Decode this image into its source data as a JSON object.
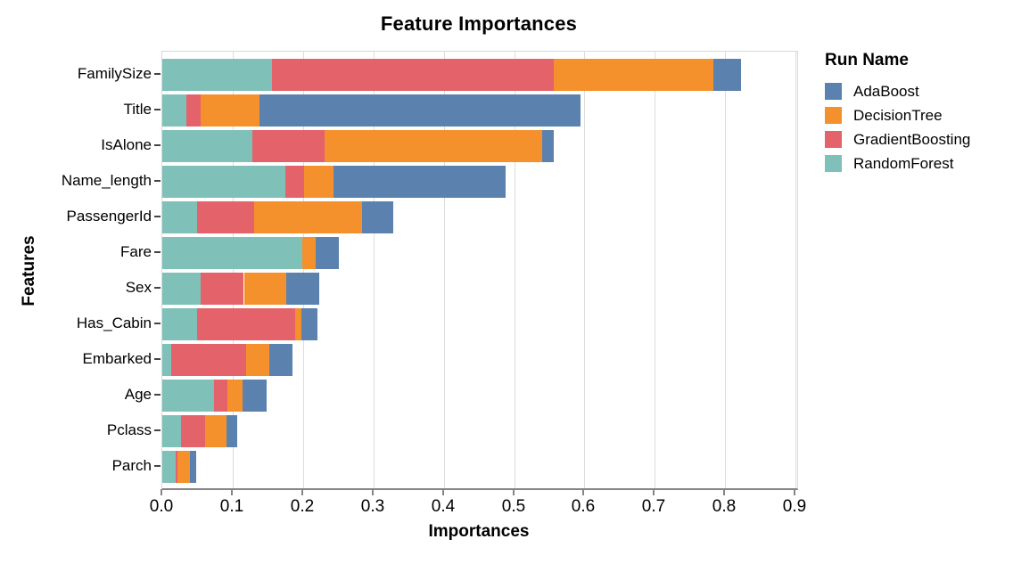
{
  "chart_data": {
    "type": "bar",
    "orientation": "horizontal-stacked",
    "title": "Feature Importances",
    "xlabel": "Importances",
    "ylabel": "Features",
    "xlim": [
      0,
      0.9025
    ],
    "x_ticks": [
      0.0,
      0.1,
      0.2,
      0.3,
      0.4,
      0.5,
      0.6,
      0.7,
      0.8,
      0.9
    ],
    "x_tick_labels": [
      "0.0",
      "0.1",
      "0.2",
      "0.3",
      "0.4",
      "0.5",
      "0.6",
      "0.7",
      "0.8",
      "0.9"
    ],
    "grid": true,
    "categories": [
      "FamilySize",
      "Title",
      "IsAlone",
      "Name_length",
      "PassengerId",
      "Fare",
      "Sex",
      "Has_Cabin",
      "Embarked",
      "Age",
      "Pclass",
      "Parch"
    ],
    "series": [
      {
        "name": "RandomForest",
        "color": "#7fc0b9",
        "values": [
          0.156,
          0.034,
          0.128,
          0.175,
          0.049,
          0.199,
          0.054,
          0.049,
          0.012,
          0.073,
          0.027,
          0.019
        ]
      },
      {
        "name": "GradientBoosting",
        "color": "#e4626a",
        "values": [
          0.4,
          0.021,
          0.102,
          0.026,
          0.081,
          0.0,
          0.062,
          0.14,
          0.107,
          0.02,
          0.034,
          0.003
        ]
      },
      {
        "name": "DecisionTree",
        "color": "#f5912d",
        "values": [
          0.227,
          0.083,
          0.31,
          0.042,
          0.154,
          0.019,
          0.06,
          0.009,
          0.033,
          0.021,
          0.03,
          0.017
        ]
      },
      {
        "name": "AdaBoost",
        "color": "#5b82af",
        "values": [
          0.039,
          0.457,
          0.017,
          0.245,
          0.044,
          0.033,
          0.047,
          0.022,
          0.033,
          0.035,
          0.016,
          0.009
        ]
      }
    ],
    "totals": [
      0.822,
      0.595,
      0.557,
      0.488,
      0.328,
      0.251,
      0.223,
      0.22,
      0.185,
      0.149,
      0.107,
      0.048
    ],
    "legend_position": "right",
    "legend": {
      "title": "Run Name",
      "entries": [
        {
          "label": "AdaBoost",
          "color": "#5b82af"
        },
        {
          "label": "DecisionTree",
          "color": "#f5912d"
        },
        {
          "label": "GradientBoosting",
          "color": "#e4626a"
        },
        {
          "label": "RandomForest",
          "color": "#7fc0b9"
        }
      ]
    }
  }
}
